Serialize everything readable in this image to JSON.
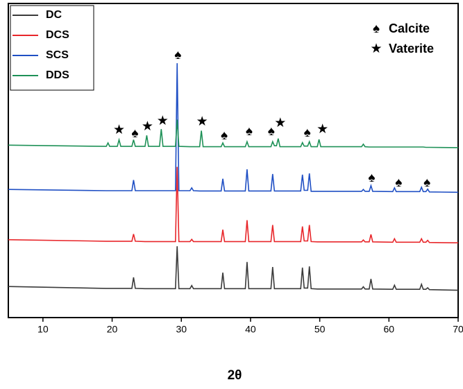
{
  "chart_data": {
    "type": "line",
    "xlabel": "2θ",
    "xlim": [
      5,
      70
    ],
    "xticks": [
      10,
      20,
      30,
      40,
      50,
      60,
      70
    ],
    "ylim": [
      0,
      100
    ],
    "x": [
      5,
      19.15,
      19.4,
      19.65,
      20.75,
      21.0,
      21.25,
      22.85,
      23.1,
      23.35,
      24.75,
      25.0,
      25.25,
      26.85,
      27.1,
      27.35,
      29.15,
      29.4,
      29.65,
      31.25,
      31.5,
      31.75,
      32.65,
      32.9,
      33.15,
      35.75,
      36.0,
      36.25,
      39.25,
      39.5,
      39.75,
      42.95,
      43.2,
      43.45,
      43.75,
      44.0,
      44.25,
      47.25,
      47.5,
      47.75,
      48.25,
      48.5,
      48.75,
      49.65,
      49.9,
      50.15,
      56.05,
      56.3,
      56.55,
      57.15,
      57.4,
      57.65,
      60.55,
      60.8,
      61.05,
      64.45,
      64.7,
      64.95,
      65.35,
      65.6,
      65.85,
      70
    ],
    "series": [
      {
        "name": "DC",
        "color": "#3a3a3a",
        "values": [
          9.9,
          9.3,
          9.3,
          9.3,
          9.3,
          9.3,
          9.3,
          9.3,
          12.8,
          9.3,
          9.2,
          9.2,
          9.2,
          9.2,
          9.2,
          9.2,
          9.2,
          22.7,
          9.2,
          9.2,
          10.2,
          9.2,
          9.2,
          9.2,
          9.2,
          9.2,
          14.3,
          9.2,
          9.2,
          17.7,
          9.2,
          9.2,
          16.1,
          9.2,
          9.2,
          9.2,
          9.2,
          9.2,
          15.9,
          9.4,
          9.4,
          16.3,
          9.2,
          9.1,
          9.1,
          9.1,
          9.1,
          9.8,
          9.1,
          9.1,
          12.3,
          9.1,
          9.0,
          10.3,
          9.0,
          9.0,
          10.6,
          9.0,
          9.0,
          9.5,
          8.9,
          8.7
        ]
      },
      {
        "name": "DCS",
        "color": "#e8262a",
        "values": [
          24.8,
          24.3,
          24.3,
          24.3,
          24.3,
          24.3,
          24.3,
          24.3,
          26.6,
          24.3,
          24.2,
          24.2,
          24.2,
          24.2,
          24.2,
          24.2,
          24.2,
          48.0,
          24.2,
          24.2,
          24.9,
          24.2,
          24.2,
          24.2,
          24.2,
          24.2,
          28.0,
          24.2,
          24.2,
          31.0,
          24.2,
          24.2,
          29.5,
          24.2,
          24.2,
          24.2,
          24.2,
          24.2,
          29.0,
          24.4,
          24.4,
          29.5,
          24.2,
          24.1,
          24.1,
          24.1,
          24.1,
          24.7,
          24.1,
          24.1,
          26.5,
          24.1,
          24.0,
          25.1,
          24.0,
          24.0,
          25.1,
          24.0,
          24.0,
          24.6,
          23.9,
          23.8
        ]
      },
      {
        "name": "SCS",
        "color": "#1f4fc4",
        "values": [
          40.8,
          40.4,
          40.4,
          40.4,
          40.4,
          40.4,
          40.4,
          40.4,
          43.8,
          40.4,
          40.4,
          40.4,
          40.4,
          40.4,
          40.4,
          40.4,
          40.4,
          81.0,
          40.4,
          40.4,
          41.3,
          40.4,
          40.3,
          40.3,
          40.3,
          40.3,
          44.2,
          40.3,
          40.3,
          47.2,
          40.3,
          40.3,
          45.7,
          40.3,
          40.3,
          40.3,
          40.3,
          40.3,
          45.5,
          40.5,
          40.5,
          45.9,
          40.2,
          40.2,
          40.2,
          40.2,
          40.2,
          40.8,
          40.2,
          40.2,
          42.0,
          40.2,
          40.1,
          41.3,
          40.1,
          40.1,
          41.5,
          40.1,
          40.1,
          40.9,
          40.0,
          39.9
        ]
      },
      {
        "name": "DDS",
        "color": "#1e9157",
        "values": [
          54.9,
          54.5,
          55.6,
          54.5,
          54.5,
          56.6,
          54.5,
          54.5,
          56.6,
          54.5,
          54.5,
          58.0,
          54.5,
          54.5,
          60.0,
          54.5,
          54.5,
          63.0,
          54.5,
          54.4,
          54.4,
          54.4,
          54.4,
          59.5,
          54.4,
          54.4,
          55.6,
          54.4,
          54.4,
          56.0,
          54.4,
          54.4,
          56.0,
          54.7,
          54.7,
          57.0,
          54.4,
          54.4,
          55.7,
          54.6,
          54.6,
          56.0,
          54.4,
          54.4,
          56.7,
          54.4,
          54.4,
          55.2,
          54.4,
          54.3,
          54.3,
          54.3,
          54.3,
          54.3,
          54.3,
          54.3,
          54.3,
          54.3,
          54.2,
          54.2,
          54.2,
          54.1
        ]
      }
    ],
    "annotations": [
      {
        "text": "★",
        "x": 21.0,
        "y": 59.6
      },
      {
        "text": "♠",
        "x": 23.3,
        "y": 58.5
      },
      {
        "text": "★",
        "x": 25.1,
        "y": 60.7
      },
      {
        "text": "★",
        "x": 27.3,
        "y": 62.5
      },
      {
        "text": "♠",
        "x": 29.5,
        "y": 83.4
      },
      {
        "text": "★",
        "x": 33.0,
        "y": 62.3
      },
      {
        "text": "♠",
        "x": 36.2,
        "y": 57.8
      },
      {
        "text": "♠",
        "x": 39.8,
        "y": 59.2
      },
      {
        "text": "♠",
        "x": 43.0,
        "y": 59.2
      },
      {
        "text": "★",
        "x": 44.3,
        "y": 61.8
      },
      {
        "text": "♠",
        "x": 48.2,
        "y": 58.7
      },
      {
        "text": "★",
        "x": 50.4,
        "y": 59.8
      },
      {
        "text": "♠",
        "x": 57.5,
        "y": 44.4
      },
      {
        "text": "♠",
        "x": 61.4,
        "y": 42.8
      },
      {
        "text": "♠",
        "x": 65.5,
        "y": 42.8
      }
    ],
    "phase_legend": [
      {
        "symbol": "♠",
        "label": "Calcite"
      },
      {
        "symbol": "★",
        "label": "Vaterite"
      }
    ]
  }
}
